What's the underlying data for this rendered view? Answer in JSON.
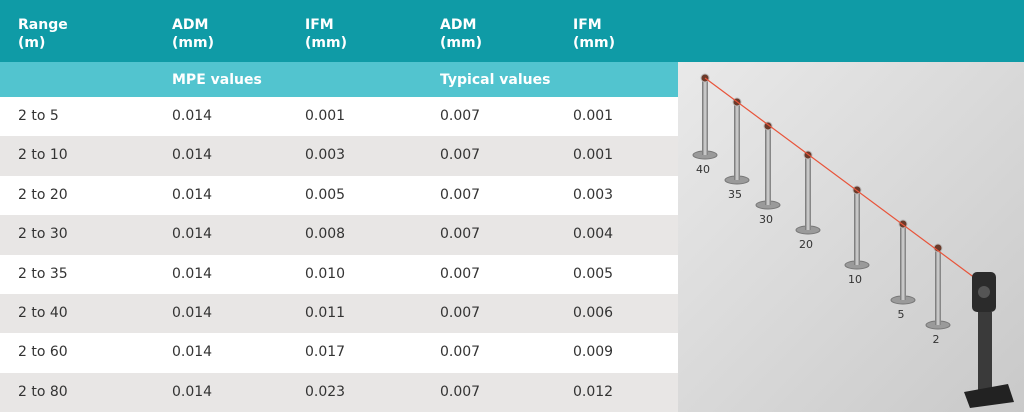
{
  "table": {
    "header": [
      {
        "name": "Range",
        "unit": "(m)"
      },
      {
        "name": "ADM",
        "unit": "(mm)"
      },
      {
        "name": "IFM",
        "unit": "(mm)"
      },
      {
        "name": "ADM",
        "unit": "(mm)"
      },
      {
        "name": "IFM",
        "unit": "(mm)"
      }
    ],
    "groups": [
      "MPE values",
      "Typical values"
    ],
    "rows": [
      [
        "2 to 5",
        "0.014",
        "0.001",
        "0.007",
        "0.001"
      ],
      [
        "2 to 10",
        "0.014",
        "0.003",
        "0.007",
        "0.001"
      ],
      [
        "2 to 20",
        "0.014",
        "0.005",
        "0.007",
        "0.003"
      ],
      [
        "2 to 30",
        "0.014",
        "0.008",
        "0.007",
        "0.004"
      ],
      [
        "2 to 35",
        "0.014",
        "0.010",
        "0.007",
        "0.005"
      ],
      [
        "2 to 40",
        "0.014",
        "0.011",
        "0.007",
        "0.006"
      ],
      [
        "2 to 60",
        "0.014",
        "0.017",
        "0.007",
        "0.009"
      ],
      [
        "2 to 80",
        "0.014",
        "0.023",
        "0.007",
        "0.012"
      ]
    ]
  },
  "illustration": {
    "distance_labels": [
      "40",
      "35",
      "30",
      "20",
      "10",
      "5",
      "2"
    ]
  }
}
